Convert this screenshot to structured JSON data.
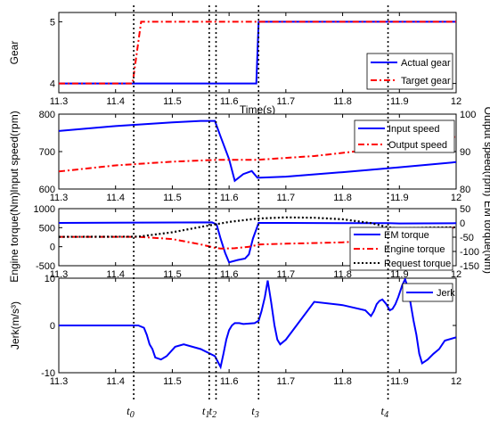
{
  "chart_data": [
    {
      "type": "line",
      "xlabel": "Time(s)",
      "ylabel": "Gear",
      "xlim": [
        11.3,
        12
      ],
      "ylim": [
        3.85,
        5.15
      ],
      "xticks": [
        "11.3",
        "11.4",
        "11.5",
        "11.6",
        "11.7",
        "11.8",
        "11.9",
        "12"
      ],
      "yticks": [
        "4",
        "5"
      ],
      "legend_position": "bottom-right",
      "series": [
        {
          "name": "Actual gear",
          "color": "#0000ff",
          "dash": "solid",
          "axis": "left",
          "x": [
            11.3,
            11.648,
            11.652,
            12
          ],
          "y": [
            4,
            4,
            5,
            5
          ]
        },
        {
          "name": "Target gear",
          "color": "#ff0000",
          "dash": "dashdot",
          "axis": "left",
          "x": [
            11.3,
            11.43,
            11.445,
            12
          ],
          "y": [
            4,
            4,
            5,
            5
          ]
        }
      ]
    },
    {
      "type": "line",
      "xlabel": "",
      "ylabel": "Input speed(rpm)",
      "ylabel_right": "Output speed(rpm)",
      "xlim": [
        11.3,
        12
      ],
      "ylim": [
        600,
        800
      ],
      "ylim_right": [
        80,
        100
      ],
      "xticks": [
        "11.3",
        "11.4",
        "11.5",
        "11.6",
        "11.7",
        "11.8",
        "11.9",
        "12"
      ],
      "yticks": [
        "600",
        "700",
        "800"
      ],
      "yticks_right": [
        "80",
        "90",
        "100"
      ],
      "legend_position": "top-right",
      "series": [
        {
          "name": "Input speed",
          "color": "#0000ff",
          "dash": "solid",
          "axis": "left",
          "x": [
            11.3,
            11.4,
            11.5,
            11.55,
            11.575,
            11.585,
            11.6,
            11.61,
            11.625,
            11.64,
            11.65,
            11.7,
            11.8,
            11.9,
            12
          ],
          "y": [
            755,
            768,
            778,
            782,
            782,
            740,
            680,
            622,
            640,
            648,
            630,
            633,
            645,
            658,
            672
          ]
        },
        {
          "name": "Output speed",
          "color": "#ff0000",
          "dash": "dashdot",
          "axis": "right",
          "x": [
            11.3,
            11.4,
            11.5,
            11.58,
            11.65,
            11.75,
            11.85,
            11.95,
            12
          ],
          "y": [
            84.7,
            86.3,
            87.3,
            87.8,
            87.8,
            88.8,
            90.5,
            92.5,
            94.0
          ]
        }
      ]
    },
    {
      "type": "line",
      "xlabel": "Time(s)",
      "ylabel": "Engine torque(Nm)",
      "ylabel_right": "EM torque(Nm)",
      "xlim": [
        11.3,
        12
      ],
      "ylim": [
        -500,
        1000
      ],
      "ylim_right": [
        -150,
        50
      ],
      "xticks": [
        "11.3",
        "11.4",
        "11.5",
        "11.6",
        "11.7",
        "11.8",
        "11.9",
        "12"
      ],
      "yticks": [
        "-500",
        "0",
        "500",
        "1000"
      ],
      "yticks_right": [
        "-150",
        "-100",
        "-50",
        "0",
        "50"
      ],
      "legend_position": "bottom-right",
      "series": [
        {
          "name": "EM torque",
          "color": "#0000ff",
          "dash": "solid",
          "axis": "right",
          "x": [
            11.3,
            11.57,
            11.578,
            11.585,
            11.593,
            11.6,
            11.615,
            11.628,
            11.635,
            11.642,
            11.652,
            11.7,
            11.85,
            11.88,
            11.9,
            12
          ],
          "y": [
            0,
            2,
            -5,
            -55,
            -105,
            -138,
            -130,
            -125,
            -110,
            -55,
            0,
            0,
            -1,
            -1,
            -2,
            -1
          ]
        },
        {
          "name": "Engine torque",
          "color": "#ff0000",
          "dash": "dashdot",
          "axis": "left",
          "x": [
            11.3,
            11.44,
            11.5,
            11.55,
            11.575,
            11.585,
            11.61,
            11.635,
            11.655,
            11.7,
            11.8,
            11.85,
            11.88,
            11.895,
            11.92,
            12
          ],
          "y": [
            260,
            260,
            200,
            60,
            -30,
            -50,
            -40,
            0,
            60,
            80,
            115,
            165,
            300,
            400,
            470,
            500
          ]
        },
        {
          "name": "Request torque",
          "color": "#000000",
          "dash": "dotted",
          "axis": "left",
          "x": [
            11.3,
            11.44,
            11.5,
            11.55,
            11.6,
            11.65,
            11.7,
            11.75,
            11.8,
            11.85,
            11.88,
            11.9,
            11.95,
            12
          ],
          "y": [
            260,
            265,
            380,
            520,
            650,
            740,
            770,
            760,
            720,
            620,
            510,
            480,
            500,
            510
          ]
        }
      ]
    },
    {
      "type": "line",
      "xlabel": "",
      "ylabel": "Jerk(m/s³)",
      "xlim": [
        11.3,
        12
      ],
      "ylim": [
        -10,
        10
      ],
      "xticks": [
        "11.3",
        "11.4",
        "11.5",
        "11.6",
        "11.7",
        "11.8",
        "11.9",
        "12"
      ],
      "yticks": [
        "-10",
        "0",
        "10"
      ],
      "legend_position": "top-right",
      "series": [
        {
          "name": "Jerk",
          "color": "#0000ff",
          "dash": "solid",
          "axis": "left",
          "x": [
            11.3,
            11.44,
            11.45,
            11.455,
            11.46,
            11.465,
            11.47,
            11.48,
            11.49,
            11.505,
            11.52,
            11.55,
            11.575,
            11.585,
            11.59,
            11.595,
            11.6,
            11.605,
            11.61,
            11.618,
            11.625,
            11.635,
            11.645,
            11.652,
            11.657,
            11.663,
            11.668,
            11.674,
            11.68,
            11.685,
            11.69,
            11.7,
            11.75,
            11.8,
            11.84,
            11.85,
            11.855,
            11.86,
            11.865,
            11.87,
            11.877,
            11.883,
            11.888,
            11.893,
            11.898,
            11.905,
            11.91,
            11.915,
            11.92,
            11.925,
            11.93,
            11.935,
            11.94,
            11.95,
            11.96,
            11.97,
            11.98,
            12
          ],
          "y": [
            0,
            0,
            -0.5,
            -2,
            -4,
            -5,
            -6.8,
            -7.2,
            -6.5,
            -4.5,
            -4,
            -5,
            -6.5,
            -8.8,
            -6,
            -3,
            -1,
            0,
            0.5,
            0.5,
            0.3,
            0.4,
            0.5,
            1,
            3,
            6,
            9.5,
            5,
            0,
            -3,
            -4,
            -3,
            5,
            4.3,
            3.2,
            2,
            3,
            4.5,
            5.2,
            5.5,
            4.5,
            3.2,
            3.5,
            4.5,
            6,
            8.5,
            9.8,
            8,
            4.5,
            1,
            -2,
            -6,
            -8,
            -7.2,
            -6,
            -5,
            -3.2,
            -2.5
          ]
        }
      ]
    }
  ],
  "events": [
    {
      "label": "t",
      "sub": "0",
      "x": 11.432
    },
    {
      "label": "t",
      "sub": "1",
      "x": 11.565
    },
    {
      "label": "t",
      "sub": "2",
      "x": 11.577
    },
    {
      "label": "t",
      "sub": "3",
      "x": 11.652
    },
    {
      "label": "t",
      "sub": "4",
      "x": 11.88
    }
  ]
}
